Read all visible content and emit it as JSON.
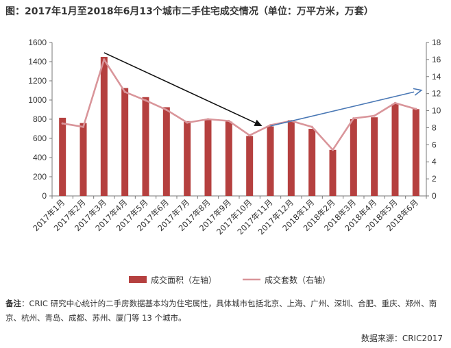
{
  "title": "图：2017年1月至2018年6月13个城市二手住宅成交情况（单位：万平方米，万套）",
  "chart_data": {
    "type": "bar+line",
    "title": "图：2017年1月至2018年6月13个城市二手住宅成交情况（单位：万平方米，万套）",
    "categories": [
      "2017年1月",
      "2017年2月",
      "2017年3月",
      "2017年4月",
      "2017年5月",
      "2017年6月",
      "2017年7月",
      "2017年8月",
      "2017年9月",
      "2017年10月",
      "2017年11月",
      "2017年12月",
      "2018年1月",
      "2018年2月",
      "2018年3月",
      "2018年4月",
      "2018年5月",
      "2018年6月"
    ],
    "series": [
      {
        "name": "成交面积（左轴）",
        "type": "bar",
        "axis": "left",
        "color": "#b5403f",
        "values": [
          815,
          760,
          1450,
          1125,
          1030,
          925,
          780,
          800,
          775,
          625,
          725,
          790,
          700,
          480,
          800,
          820,
          960,
          905
        ]
      },
      {
        "name": "成交套数（右轴）",
        "type": "line",
        "axis": "right",
        "color": "#d9959a",
        "values": [
          8.5,
          8.1,
          16.0,
          12.2,
          11.2,
          10.1,
          8.6,
          9.0,
          8.8,
          7.1,
          8.3,
          8.8,
          8.1,
          5.4,
          9.1,
          9.4,
          10.9,
          10.2
        ]
      }
    ],
    "left_axis": {
      "ylim": [
        0,
        1600
      ],
      "ticks": [
        0,
        200,
        400,
        600,
        800,
        1000,
        1200,
        1400,
        1600
      ]
    },
    "right_axis": {
      "ylim": [
        0,
        18
      ],
      "ticks": [
        0,
        2,
        4,
        6,
        8,
        10,
        12,
        14,
        16,
        18
      ]
    },
    "annotations": [
      {
        "type": "arrow",
        "color": "#111111",
        "from_category": "2017年3月",
        "to_category": "2017年11月",
        "from_value_right": 16.8,
        "to_value_right": 8.2
      },
      {
        "type": "arrow",
        "color": "#4a78b5",
        "from_category": "2017年11月",
        "to_category": "2018年6月",
        "from_value_right": 8.2,
        "to_value_right": 12.4
      }
    ],
    "legend_position": "bottom"
  },
  "note": {
    "label": "备注",
    "text": "：CRIC 研究中心统计的二手房数据基本均为住宅属性，具体城市包括北京、上海、广州、深圳、合肥、重庆、郑州、南京、杭州、青岛、成都、苏州、厦门等 13 个城市。"
  },
  "source": "数据来源：CRIC2017"
}
